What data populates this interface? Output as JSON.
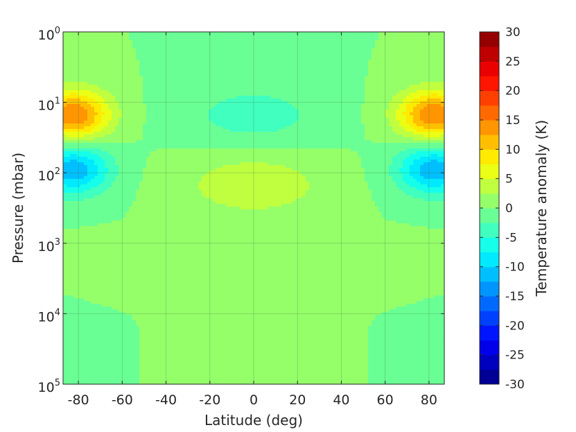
{
  "chart_data": {
    "type": "heatmap",
    "title": "",
    "xlabel": "Latitude (deg)",
    "ylabel": "Pressure (mbar)",
    "x_ticks": [
      "-80",
      "-60",
      "-40",
      "-20",
      "0",
      "20",
      "40",
      "60",
      "80"
    ],
    "x_tick_values": [
      -80,
      -60,
      -40,
      -20,
      0,
      20,
      40,
      60,
      80
    ],
    "xlim": [
      -87,
      87
    ],
    "y_scale": "log",
    "y_reversed": true,
    "y_ticks": [
      {
        "base": "10",
        "exp": "0",
        "value": 1
      },
      {
        "base": "10",
        "exp": "1",
        "value": 10
      },
      {
        "base": "10",
        "exp": "2",
        "value": 100
      },
      {
        "base": "10",
        "exp": "3",
        "value": 1000
      },
      {
        "base": "10",
        "exp": "4",
        "value": 10000
      },
      {
        "base": "10",
        "exp": "5",
        "value": 100000
      }
    ],
    "ylim": [
      1,
      100000
    ],
    "grid": true,
    "colormap": "jet",
    "colorbar": {
      "label": "Temperature anomaly (K)",
      "range": [
        -30,
        30
      ],
      "ticks": [
        "30",
        "25",
        "20",
        "15",
        "10",
        "5",
        "0",
        "-5",
        "-10",
        "-15",
        "-20",
        "-25",
        "-30"
      ],
      "tick_values": [
        30,
        25,
        20,
        15,
        10,
        5,
        0,
        -5,
        -10,
        -15,
        -20,
        -25,
        -30
      ],
      "levels": 24
    },
    "features": [
      {
        "lat": -82,
        "pressure_mbar": 15,
        "anomaly_K": 15
      },
      {
        "lat": 82,
        "pressure_mbar": 15,
        "anomaly_K": 15
      },
      {
        "lat": -82,
        "pressure_mbar": 90,
        "anomaly_K": -12
      },
      {
        "lat": 82,
        "pressure_mbar": 90,
        "anomaly_K": -12
      },
      {
        "lat": 0,
        "pressure_mbar": 15,
        "anomaly_K": -4
      },
      {
        "lat": 0,
        "pressure_mbar": 150,
        "anomaly_K": 5
      },
      {
        "lat": -70,
        "pressure_mbar": 3000,
        "anomaly_K": 1.5
      },
      {
        "lat": 70,
        "pressure_mbar": 3000,
        "anomaly_K": 1.5
      },
      {
        "lat": 0,
        "pressure_mbar": 15000,
        "anomaly_K": 1.5
      },
      {
        "lat": -80,
        "pressure_mbar": 15000,
        "anomaly_K": -1.5
      },
      {
        "lat": 80,
        "pressure_mbar": 15000,
        "anomaly_K": -1.5
      }
    ]
  }
}
